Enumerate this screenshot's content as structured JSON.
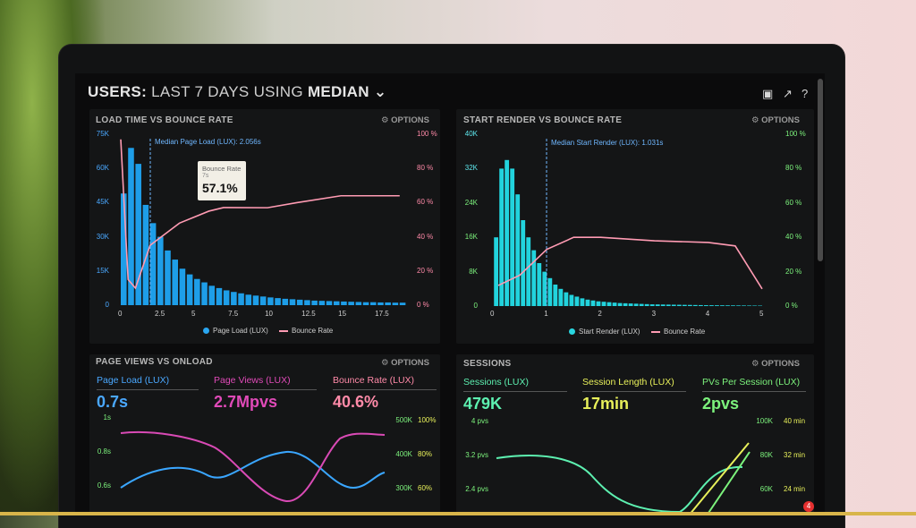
{
  "header": {
    "title_prefix": "USERS:",
    "title_range": "LAST 7 DAYS",
    "title_using": "USING",
    "title_stat": "MEDIAN",
    "chevron": "⌄"
  },
  "header_icons": [
    "monitor-icon",
    "share-icon",
    "help-icon"
  ],
  "panels": {
    "load_time": {
      "title": "LOAD TIME VS BOUNCE RATE",
      "options": "OPTIONS",
      "median_label": "Median Page Load (LUX): 2.056s",
      "y_left": [
        "75K",
        "60K",
        "45K",
        "30K",
        "15K",
        "0"
      ],
      "y_right": [
        "100 %",
        "80 %",
        "60 %",
        "40 %",
        "20 %",
        "0 %"
      ],
      "x": [
        "0",
        "2.5",
        "5",
        "7.5",
        "10",
        "12.5",
        "15",
        "17.5"
      ],
      "legend": [
        "Page Load (LUX)",
        "Bounce Rate"
      ],
      "tooltip": {
        "title": "Bounce Rate",
        "sub": "7s",
        "value": "57.1%"
      }
    },
    "start_render": {
      "title": "START RENDER VS BOUNCE RATE",
      "options": "OPTIONS",
      "median_label": "Median Start Render (LUX): 1.031s",
      "y_left": [
        "40K",
        "32K",
        "24K",
        "16K",
        "8K",
        "0"
      ],
      "y_right": [
        "100 %",
        "80 %",
        "60 %",
        "40 %",
        "20 %",
        "0 %"
      ],
      "x": [
        "0",
        "1",
        "2",
        "3",
        "4",
        "5"
      ],
      "legend": [
        "Start Render (LUX)",
        "Bounce Rate"
      ]
    },
    "page_views": {
      "title": "PAGE VIEWS VS ONLOAD",
      "options": "OPTIONS",
      "metrics": [
        {
          "label": "Page Load (LUX)",
          "value": "0.7s"
        },
        {
          "label": "Page Views (LUX)",
          "value": "2.7Mpvs"
        },
        {
          "label": "Bounce Rate (LUX)",
          "value": "40.6%"
        }
      ],
      "y_left": [
        "1s",
        "0.8s",
        "0.6s"
      ],
      "y_mid": [
        "500K",
        "400K",
        "300K"
      ],
      "y_right": [
        "100%",
        "80%",
        "60%"
      ]
    },
    "sessions": {
      "title": "SESSIONS",
      "options": "OPTIONS",
      "metrics": [
        {
          "label": "Sessions (LUX)",
          "value": "479K"
        },
        {
          "label": "Session Length (LUX)",
          "value": "17min"
        },
        {
          "label": "PVs Per Session (LUX)",
          "value": "2pvs"
        }
      ],
      "y_left": [
        "4 pvs",
        "3.2 pvs",
        "2.4 pvs"
      ],
      "y_mid": [
        "100K",
        "80K",
        "60K"
      ],
      "y_right": [
        "40 min",
        "32 min",
        "24 min"
      ]
    }
  },
  "notification_count": "4",
  "chart_data": [
    {
      "type": "bar",
      "title": "LOAD TIME VS BOUNCE RATE",
      "xlabel": "",
      "ylabel": "",
      "ylim": [
        0,
        75000
      ],
      "x": [
        0,
        0.5,
        1,
        1.5,
        2,
        2.5,
        3,
        3.5,
        4,
        4.5,
        5,
        5.5,
        6,
        6.5,
        7,
        7.5,
        8,
        8.5,
        9,
        9.5,
        10,
        10.5,
        11,
        11.5,
        12,
        12.5,
        13,
        13.5,
        14,
        14.5,
        15,
        15.5,
        16,
        16.5,
        17,
        17.5,
        18,
        18.5,
        19
      ],
      "series": [
        {
          "name": "Page Load (LUX)",
          "values": [
            49000,
            69000,
            62000,
            44000,
            36000,
            30000,
            24000,
            20000,
            16000,
            13500,
            11500,
            10000,
            8500,
            7500,
            6500,
            5800,
            5200,
            4600,
            4200,
            3800,
            3400,
            3100,
            2800,
            2600,
            2400,
            2200,
            2000,
            1900,
            1800,
            1700,
            1600,
            1500,
            1400,
            1300,
            1300,
            1200,
            1200,
            1100,
            1100
          ]
        }
      ],
      "line": {
        "name": "Bounce Rate",
        "y_unit": "%",
        "points": [
          [
            0,
            97
          ],
          [
            0.5,
            15
          ],
          [
            1,
            10
          ],
          [
            2,
            35
          ],
          [
            4,
            48
          ],
          [
            6,
            55
          ],
          [
            7,
            57.1
          ],
          [
            10,
            57
          ],
          [
            12,
            60
          ],
          [
            15,
            64
          ],
          [
            19,
            64
          ]
        ]
      }
    },
    {
      "type": "bar",
      "title": "START RENDER VS BOUNCE RATE",
      "ylim": [
        0,
        40000
      ],
      "x": [
        0.1,
        0.2,
        0.3,
        0.4,
        0.5,
        0.6,
        0.7,
        0.8,
        0.9,
        1.0,
        1.1,
        1.2,
        1.3,
        1.4,
        1.5,
        1.6,
        1.7,
        1.8,
        1.9,
        2.0,
        2.1,
        2.2,
        2.3,
        2.4,
        2.5,
        2.6,
        2.7,
        2.8,
        2.9,
        3.0,
        3.1,
        3.2,
        3.3,
        3.4,
        3.5,
        3.6,
        3.7,
        3.8,
        3.9,
        4.0,
        4.1,
        4.2,
        4.3,
        4.4,
        4.5,
        4.6,
        4.7,
        4.8,
        4.9,
        5.0
      ],
      "series": [
        {
          "name": "Start Render (LUX)",
          "values": [
            16000,
            32000,
            34000,
            32000,
            26000,
            20000,
            16000,
            13000,
            10000,
            8000,
            6500,
            5000,
            4000,
            3200,
            2600,
            2200,
            1800,
            1500,
            1300,
            1100,
            1000,
            900,
            800,
            700,
            650,
            600,
            550,
            500,
            450,
            400,
            380,
            360,
            340,
            320,
            300,
            280,
            260,
            240,
            220,
            200,
            190,
            180,
            170,
            160,
            150,
            140,
            130,
            120,
            110,
            100
          ]
        }
      ],
      "line": {
        "name": "Bounce Rate",
        "y_unit": "%",
        "points": [
          [
            0.1,
            12
          ],
          [
            0.5,
            18
          ],
          [
            1,
            33
          ],
          [
            1.5,
            40
          ],
          [
            2,
            40
          ],
          [
            3,
            38
          ],
          [
            4,
            37
          ],
          [
            4.5,
            35
          ],
          [
            5,
            10
          ]
        ]
      }
    }
  ]
}
